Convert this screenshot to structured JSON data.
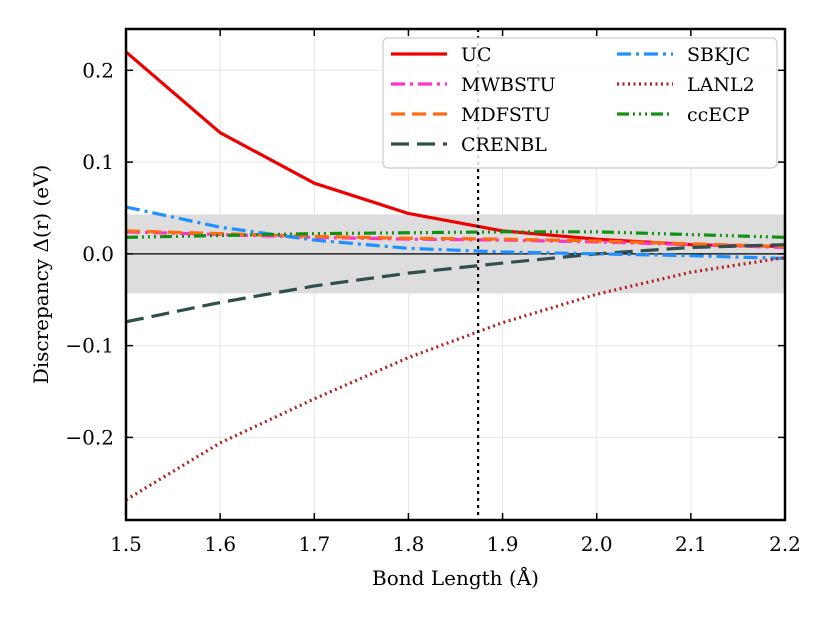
{
  "chart_data": {
    "type": "line",
    "xlabel": "Bond Length (Å)",
    "ylabel": "Discrepancy Δ(r) (eV)",
    "xlim": [
      1.5,
      2.2
    ],
    "ylim": [
      -0.29,
      0.245
    ],
    "xticks": [
      1.5,
      1.6,
      1.7,
      1.8,
      1.9,
      2.0,
      2.1,
      2.2
    ],
    "xtick_labels": [
      "1.5",
      "1.6",
      "1.7",
      "1.8",
      "1.9",
      "2.0",
      "2.1",
      "2.2"
    ],
    "yticks": [
      -0.2,
      -0.1,
      0.0,
      0.1,
      0.2
    ],
    "ytick_labels": [
      "−0.2",
      "−0.1",
      "0.0",
      "0.1",
      "0.2"
    ],
    "grid": true,
    "legend_position": "top-right",
    "shaded_band": {
      "y_from": -0.043,
      "y_to": 0.043,
      "color": "#dddddd"
    },
    "zero_line": 0.0,
    "vertical_line": {
      "x": 1.874,
      "style": "dotted",
      "color": "#000000"
    },
    "x": [
      1.5,
      1.6,
      1.7,
      1.8,
      1.9,
      2.0,
      2.1,
      2.2
    ],
    "series": [
      {
        "name": "UC",
        "color": "#ee0000",
        "dash": "",
        "values": [
          0.22,
          0.132,
          0.077,
          0.044,
          0.025,
          0.016,
          0.01,
          0.008
        ]
      },
      {
        "name": "MWBSTU",
        "color": "#ff33cc",
        "dash": "14 5 3 5",
        "values": [
          0.024,
          0.021,
          0.018,
          0.016,
          0.015,
          0.013,
          0.01,
          0.007
        ]
      },
      {
        "name": "MDFSTU",
        "color": "#ff6a13",
        "dash": "14 7",
        "values": [
          0.025,
          0.022,
          0.019,
          0.017,
          0.016,
          0.014,
          0.011,
          0.008
        ]
      },
      {
        "name": "CRENBL",
        "color": "#2f4f4f",
        "dash": "18 8",
        "values": [
          -0.074,
          -0.053,
          -0.035,
          -0.021,
          -0.01,
          0.0,
          0.007,
          0.01
        ]
      },
      {
        "name": "SBKJC",
        "color": "#1e90ff",
        "dash": "14 5 3 5",
        "values": [
          0.051,
          0.029,
          0.015,
          0.006,
          0.002,
          0.0,
          -0.002,
          -0.005
        ]
      },
      {
        "name": "LANL2",
        "color": "#b22222",
        "dash": "2 3.5",
        "values": [
          -0.268,
          -0.206,
          -0.158,
          -0.113,
          -0.075,
          -0.044,
          -0.02,
          -0.004
        ]
      },
      {
        "name": "ccECP",
        "color": "#119111",
        "dash": "12 4 2 4 2 4 2 4",
        "values": [
          0.018,
          0.02,
          0.022,
          0.023,
          0.024,
          0.024,
          0.021,
          0.018
        ]
      }
    ]
  }
}
